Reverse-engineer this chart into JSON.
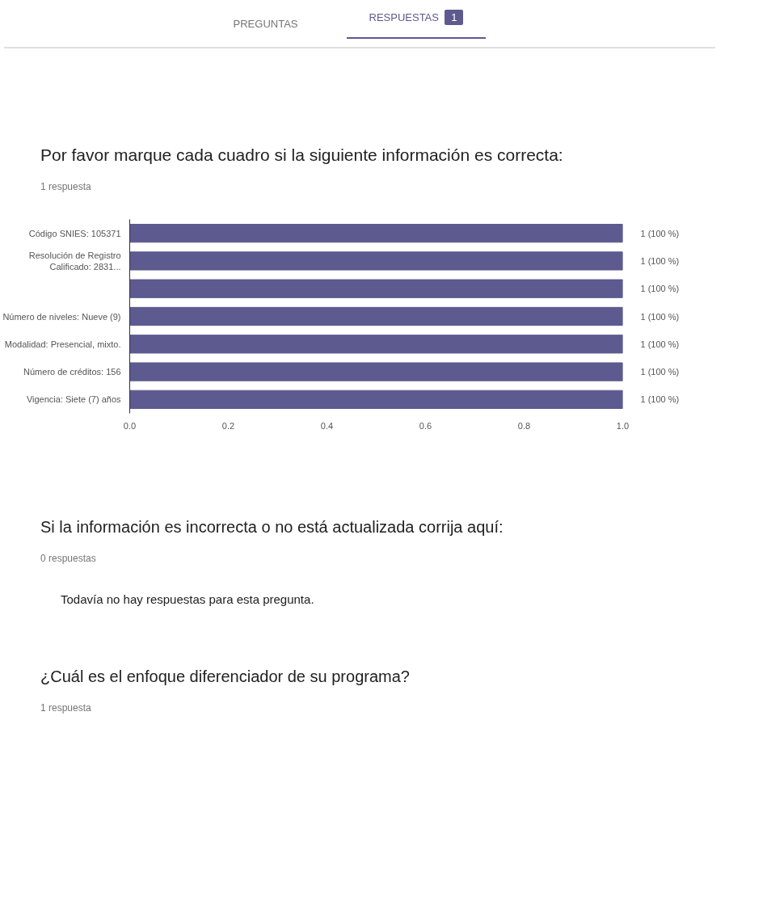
{
  "chart_data": {
    "type": "bar",
    "orientation": "horizontal",
    "title": "Por favor marque cada cuadro si la siguiente información es correcta:",
    "subtitle": "1 respuesta",
    "categories": [
      "Código SNIES: 105371",
      "Resolución de Registro\nCalificado: 2831...",
      null,
      "Número de niveles: Nueve (9)",
      "Modalidad: Presencial, mixto.",
      "Número de créditos: 156",
      "Vigencia: Siete (7) años"
    ],
    "values": [
      1,
      1,
      1,
      1,
      1,
      1,
      1
    ],
    "value_labels": [
      "1 (100 %)",
      "1 (100 %)",
      "1 (100 %)",
      "1 (100 %)",
      "1 (100 %)",
      "1 (100 %)",
      "1 (100 %)"
    ],
    "color": "#5c5a8e",
    "xlim": [
      0,
      1
    ],
    "xticks": [
      {
        "value": 0,
        "label": "0.0"
      },
      {
        "value": 0.2,
        "label": "0.2"
      },
      {
        "value": 0.4,
        "label": "0.4"
      },
      {
        "value": 0.6,
        "label": "0.6"
      },
      {
        "value": 0.8,
        "label": "0.8"
      },
      {
        "value": 1,
        "label": "1.0"
      }
    ],
    "grid": false,
    "annotations": [
      "PREGUNTAS",
      "RESPUESTAS",
      "1",
      "Si la información es incorrecta o no está actualizada corrija aquí:",
      "0 respuestas",
      "Todavía no hay respuestas para esta pregunta.",
      "¿Cuál es el enfoque diferenciador de su programa?",
      "1 respuesta"
    ]
  }
}
